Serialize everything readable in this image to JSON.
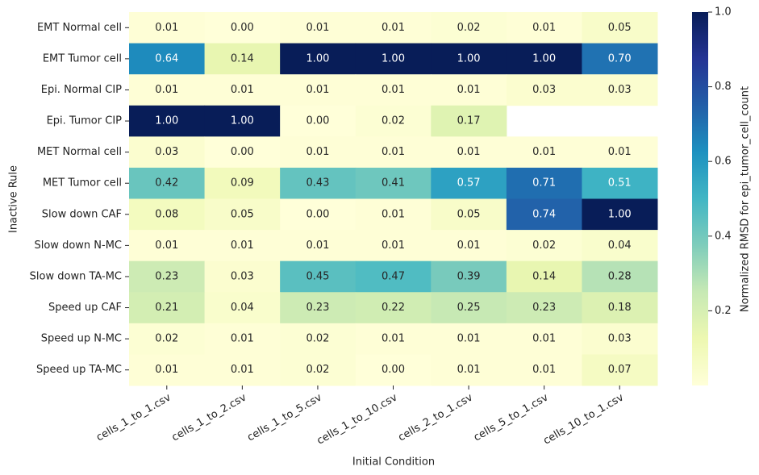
{
  "chart_data": {
    "type": "heatmap",
    "xlabel": "Initial Condition",
    "ylabel": "Inactive Rule",
    "colorbar_label": "Normalized RMSD for epi_tumor_cell_count",
    "x_categories": [
      "cells_1_to_1.csv",
      "cells_1_to_2.csv",
      "cells_1_to_5.csv",
      "cells_1_to_10.csv",
      "cells_2_to_1.csv",
      "cells_5_to_1.csv",
      "cells_10_to_1.csv"
    ],
    "y_categories": [
      "EMT Normal cell",
      "EMT Tumor cell",
      "Epi. Normal CIP",
      "Epi. Tumor CIP",
      "MET Normal cell",
      "MET Tumor cell",
      "Slow down CAF",
      "Slow down N-MC",
      "Slow down TA-MC",
      "Speed up CAF",
      "Speed up N-MC",
      "Speed up TA-MC"
    ],
    "values": [
      [
        0.01,
        0,
        0.01,
        0.01,
        0.02,
        0.01,
        0.05
      ],
      [
        0.64,
        0.14,
        1,
        1,
        1,
        1,
        0.7
      ],
      [
        0.01,
        0.01,
        0.01,
        0.01,
        0.01,
        0.03,
        0.03
      ],
      [
        1,
        1,
        0,
        0.02,
        0.17,
        null,
        null
      ],
      [
        0.03,
        0,
        0.01,
        0.01,
        0.01,
        0.01,
        0.01
      ],
      [
        0.42,
        0.09,
        0.43,
        0.41,
        0.57,
        0.71,
        0.51
      ],
      [
        0.08,
        0.05,
        0,
        0.01,
        0.05,
        0.74,
        1
      ],
      [
        0.01,
        0.01,
        0.01,
        0.01,
        0.01,
        0.02,
        0.04
      ],
      [
        0.23,
        0.03,
        0.45,
        0.47,
        0.39,
        0.14,
        0.28
      ],
      [
        0.21,
        0.04,
        0.23,
        0.22,
        0.25,
        0.23,
        0.18
      ],
      [
        0.02,
        0.01,
        0.02,
        0.01,
        0.01,
        0.01,
        0.03
      ],
      [
        0.01,
        0.01,
        0.02,
        0,
        0.01,
        0.01,
        0.07
      ]
    ],
    "value_labels": [
      [
        "0.01",
        "0.00",
        "0.01",
        "0.01",
        "0.02",
        "0.01",
        "0.05"
      ],
      [
        "0.64",
        "0.14",
        "1.00",
        "1.00",
        "1.00",
        "1.00",
        "0.70"
      ],
      [
        "0.01",
        "0.01",
        "0.01",
        "0.01",
        "0.01",
        "0.03",
        "0.03"
      ],
      [
        "1.00",
        "1.00",
        "0.00",
        "0.02",
        "0.17",
        null,
        null
      ],
      [
        "0.03",
        "0.00",
        "0.01",
        "0.01",
        "0.01",
        "0.01",
        "0.01"
      ],
      [
        "0.42",
        "0.09",
        "0.43",
        "0.41",
        "0.57",
        "0.71",
        "0.51"
      ],
      [
        "0.08",
        "0.05",
        "0.00",
        "0.01",
        "0.05",
        "0.74",
        "1.00"
      ],
      [
        "0.01",
        "0.01",
        "0.01",
        "0.01",
        "0.01",
        "0.02",
        "0.04"
      ],
      [
        "0.23",
        "0.03",
        "0.45",
        "0.47",
        "0.39",
        "0.14",
        "0.28"
      ],
      [
        "0.21",
        "0.04",
        "0.23",
        "0.22",
        "0.25",
        "0.23",
        "0.18"
      ],
      [
        "0.02",
        "0.01",
        "0.02",
        "0.01",
        "0.01",
        "0.01",
        "0.03"
      ],
      [
        "0.01",
        "0.01",
        "0.02",
        "0.00",
        "0.01",
        "0.01",
        "0.07"
      ]
    ],
    "clim": [
      0,
      1
    ],
    "colorbar_ticks": [
      0.2,
      0.4,
      0.6,
      0.8,
      {
        "value": 1,
        "label": "1.0"
      }
    ],
    "colorscale": [
      "#ffffd9",
      "#edf8b1",
      "#c7e9b4",
      "#7fcdbb",
      "#41b6c4",
      "#1d91c0",
      "#225ea8",
      "#253494",
      "#081d58"
    ]
  }
}
